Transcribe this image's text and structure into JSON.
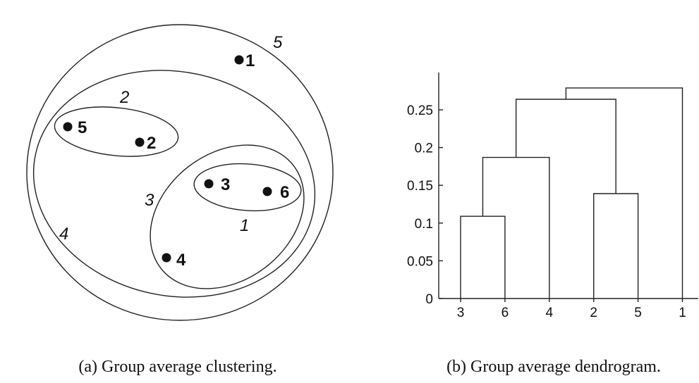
{
  "panel_a": {
    "caption": "(a) Group average clustering.",
    "points": [
      {
        "id": "1",
        "label": "1"
      },
      {
        "id": "2",
        "label": "2"
      },
      {
        "id": "3",
        "label": "3"
      },
      {
        "id": "4",
        "label": "4"
      },
      {
        "id": "5",
        "label": "5"
      },
      {
        "id": "6",
        "label": "6"
      }
    ],
    "clusters": [
      {
        "label": "1",
        "members": [
          "3",
          "6"
        ]
      },
      {
        "label": "2",
        "members": [
          "2",
          "5"
        ]
      },
      {
        "label": "3",
        "members": [
          "3",
          "6",
          "4"
        ]
      },
      {
        "label": "4",
        "members": [
          "3",
          "6",
          "4",
          "2",
          "5"
        ]
      },
      {
        "label": "5",
        "members": [
          "3",
          "6",
          "4",
          "2",
          "5",
          "1"
        ]
      }
    ]
  },
  "panel_b": {
    "caption": "(b) Group average dendrogram.",
    "chart_data": {
      "type": "dendrogram",
      "leaves": [
        "3",
        "6",
        "4",
        "2",
        "5",
        "1"
      ],
      "ylim": [
        0,
        0.29
      ],
      "yticks": [
        "0",
        "0.05",
        "0.1",
        "0.15",
        "0.2",
        "0.25"
      ],
      "merges": [
        {
          "left": "3",
          "right": "6",
          "height": 0.109
        },
        {
          "left": "36",
          "right": "4",
          "height": 0.187
        },
        {
          "left": "2",
          "right": "5",
          "height": 0.139
        },
        {
          "left": "364",
          "right": "25",
          "height": 0.264
        },
        {
          "left": "36425",
          "right": "1",
          "height": 0.279
        }
      ]
    }
  }
}
